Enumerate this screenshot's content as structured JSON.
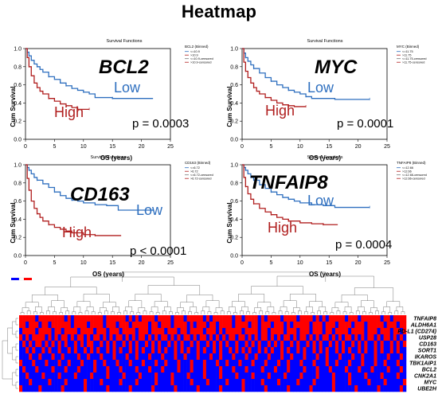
{
  "page": {
    "title": "Heatmap"
  },
  "colors": {
    "low": "#2e6fbf",
    "high": "#b01e1e",
    "heat_high": "#ff0000",
    "heat_low": "#0000ff"
  },
  "chart_data": [
    {
      "type": "line",
      "title": "Survival Functions",
      "gene": "BCL2",
      "xlabel": "OS (years)",
      "ylabel": "Cum Survival",
      "xlim": [
        0,
        25
      ],
      "ylim": [
        0,
        1.0
      ],
      "xticks": [
        0,
        5,
        10,
        15,
        20,
        25
      ],
      "yticks": [
        0.0,
        0.2,
        0.4,
        0.6,
        0.8,
        1.0
      ],
      "legend": {
        "title": "BCL2 (Binned)",
        "placement": "top-right",
        "entries": [
          "<=10.9",
          ">10.9",
          "<=10.9-censored",
          ">10.9-censored"
        ]
      },
      "p_label": "p = 0.0003",
      "series": [
        {
          "name": "Low",
          "x": [
            0,
            0.3,
            0.6,
            1,
            1.5,
            2,
            2.5,
            3,
            4,
            5,
            6,
            7,
            8,
            9,
            10,
            11,
            12,
            15,
            22
          ],
          "y": [
            1.0,
            0.96,
            0.92,
            0.87,
            0.83,
            0.8,
            0.77,
            0.74,
            0.69,
            0.66,
            0.62,
            0.59,
            0.56,
            0.54,
            0.52,
            0.5,
            0.46,
            0.45,
            0.45
          ]
        },
        {
          "name": "High",
          "x": [
            0,
            0.3,
            0.6,
            1,
            1.5,
            2,
            2.5,
            3,
            4,
            5,
            6,
            7,
            8,
            9,
            11
          ],
          "y": [
            1.0,
            0.9,
            0.8,
            0.7,
            0.62,
            0.57,
            0.53,
            0.5,
            0.45,
            0.42,
            0.39,
            0.37,
            0.35,
            0.33,
            0.33
          ]
        }
      ]
    },
    {
      "type": "line",
      "title": "Survival Functions",
      "gene": "MYC",
      "xlabel": "OS (years)",
      "ylabel": "Cum Survival",
      "xlim": [
        0,
        25
      ],
      "ylim": [
        0,
        1.0
      ],
      "xticks": [
        0,
        5,
        10,
        15,
        20,
        25
      ],
      "yticks": [
        0.0,
        0.2,
        0.4,
        0.6,
        0.8,
        1.0
      ],
      "legend": {
        "title": "MYC (Binned)",
        "placement": "top-right",
        "entries": [
          "<=11.75",
          ">11.75",
          "<=11.75-censored",
          ">11.75-censored"
        ]
      },
      "p_label": "p = 0.0001",
      "series": [
        {
          "name": "Low",
          "x": [
            0,
            0.3,
            0.6,
            1,
            1.5,
            2,
            3,
            4,
            5,
            6,
            7,
            8,
            9,
            10,
            11,
            12,
            16,
            22
          ],
          "y": [
            1.0,
            0.95,
            0.9,
            0.86,
            0.82,
            0.78,
            0.73,
            0.68,
            0.64,
            0.6,
            0.57,
            0.54,
            0.52,
            0.5,
            0.47,
            0.45,
            0.44,
            0.44
          ]
        },
        {
          "name": "High",
          "x": [
            0,
            0.3,
            0.6,
            1,
            1.5,
            2,
            2.5,
            3,
            4,
            5,
            6,
            7,
            8,
            9,
            11
          ],
          "y": [
            1.0,
            0.85,
            0.75,
            0.68,
            0.62,
            0.57,
            0.53,
            0.5,
            0.46,
            0.43,
            0.4,
            0.38,
            0.37,
            0.36,
            0.36
          ]
        }
      ]
    },
    {
      "type": "line",
      "title": "Survival Functions",
      "gene": "CD163",
      "xlabel": "OS (years)",
      "ylabel": "Cum Survival",
      "xlim": [
        0,
        25
      ],
      "ylim": [
        0,
        1.0
      ],
      "xticks": [
        0,
        5,
        10,
        15,
        20,
        25
      ],
      "yticks": [
        0.0,
        0.2,
        0.4,
        0.6,
        0.8,
        1.0
      ],
      "legend": {
        "title": "CD163 (Binned)",
        "placement": "top-right",
        "entries": [
          "<=6.72",
          ">6.72",
          "<=6.72-censored",
          ">6.72-censored"
        ]
      },
      "p_label": "p < 0.0001",
      "series": [
        {
          "name": "Low",
          "x": [
            0,
            0.3,
            0.6,
            1,
            1.5,
            2,
            3,
            4,
            5,
            6,
            7,
            8,
            9,
            10,
            12,
            14,
            16,
            22
          ],
          "y": [
            1.0,
            0.97,
            0.94,
            0.9,
            0.86,
            0.83,
            0.79,
            0.75,
            0.7,
            0.66,
            0.63,
            0.61,
            0.6,
            0.58,
            0.56,
            0.55,
            0.5,
            0.5
          ]
        },
        {
          "name": "High",
          "x": [
            0,
            0.3,
            0.6,
            1,
            1.5,
            2,
            2.5,
            3,
            4,
            5,
            6,
            7,
            8,
            10,
            12,
            16.5
          ],
          "y": [
            1.0,
            0.85,
            0.72,
            0.6,
            0.52,
            0.46,
            0.42,
            0.38,
            0.34,
            0.31,
            0.29,
            0.27,
            0.25,
            0.23,
            0.22,
            0.22
          ]
        }
      ]
    },
    {
      "type": "line",
      "title": "Survival Functions",
      "gene": "TNFAIP8",
      "xlabel": "OS (years)",
      "ylabel": "Cum Survival",
      "xlim": [
        0,
        25
      ],
      "ylim": [
        0,
        1.0
      ],
      "xticks": [
        0,
        5,
        10,
        15,
        20,
        25
      ],
      "yticks": [
        0.0,
        0.2,
        0.4,
        0.6,
        0.8,
        1.0
      ],
      "legend": {
        "title": "TNFAIP8 (Binned)",
        "placement": "top-right",
        "entries": [
          "<=12.66",
          ">12.66",
          "<=12.66-censored",
          ">12.66-censored"
        ]
      },
      "p_label": "p = 0.0004",
      "series": [
        {
          "name": "Low",
          "x": [
            0,
            0.3,
            0.6,
            1,
            1.5,
            2,
            3,
            4,
            5,
            6,
            7,
            8,
            9,
            10,
            12,
            14,
            16,
            22
          ],
          "y": [
            1.0,
            0.97,
            0.94,
            0.9,
            0.86,
            0.83,
            0.78,
            0.74,
            0.7,
            0.67,
            0.64,
            0.62,
            0.6,
            0.58,
            0.56,
            0.55,
            0.53,
            0.53
          ]
        },
        {
          "name": "High",
          "x": [
            0,
            0.3,
            0.6,
            1,
            1.5,
            2,
            3,
            4,
            5,
            6,
            7,
            8,
            10,
            12,
            14,
            16.5
          ],
          "y": [
            1.0,
            0.86,
            0.76,
            0.68,
            0.62,
            0.57,
            0.52,
            0.48,
            0.45,
            0.42,
            0.4,
            0.38,
            0.36,
            0.35,
            0.34,
            0.34
          ]
        }
      ]
    },
    {
      "type": "heatmap",
      "rows": [
        "TNFAIP8",
        "ALDH6A1",
        "PD-L1 (CD274)",
        "USP28",
        "CD163",
        "SORT1",
        "IKAROS",
        "TBK1AIP1",
        "BCL2",
        "CNK2A1",
        "MYC",
        "UBE2H"
      ],
      "row_labels_visible": [
        "TNFAIP8",
        "ALDH6A1",
        "PD-L1 (CD274)",
        "USP28",
        "CD163",
        "SORT1",
        "IKAROS",
        "TBK1AIP1",
        "BCL2",
        "CNK2A1",
        "MYC",
        "UBE2H"
      ],
      "n_columns": 120,
      "color_scale": [
        "#0000ff",
        "#ffffff",
        "#ff0000"
      ],
      "cells_encoding": "per row, a string of 1 (high, red) and 0 (low, blue) per column",
      "cells": [
        "111110111111110101111111110111111010101111011110111011111010111111011011110101111011110111101010111110111011111101101111",
        "110111011011111101111011110111011101111101101110111101011101101111011110110111011101011111011101110111101110111110111011",
        "011110111101101111011110111011101111011101111011101101111011101011111011110110111101110111011101101111011110111011101101",
        "101011110101011010110101101010110101011010101101010110101101010101101101010110101011010110101011010101101010110101101010",
        "010101101010101001010110010101001010100101010010101001010010101010010010101001010100101001010100101010010101001010010101",
        "001010010100100101001010100101010010101001010100101010010100101001010101001010100101001010010101001010100101001010010100",
        "000100100010010000100100010001000100100010001000100100010001001000100010010001000100100010001001000100010010001000100010",
        "100010001000100100010001001000100010001000100100010001000100010010001000100010001001000100010001001000100010001001000100",
        "010001000010001000100001000100010000100010001000010001000100001000100010000100010001000010001000100001000100010000100010",
        "001000010000100001000010000100001000010000100001000010000100001000010000100001000010000100001000010000100001000010000100",
        "000100000100001000001000010000010000100000100001000001000010000010000100000100001000001000010000010000100000100001000001",
        "100000100000010000001000000100000010000001000000100000010000001000000100000010000001000000100000010000001000000100000010"
      ]
    }
  ]
}
